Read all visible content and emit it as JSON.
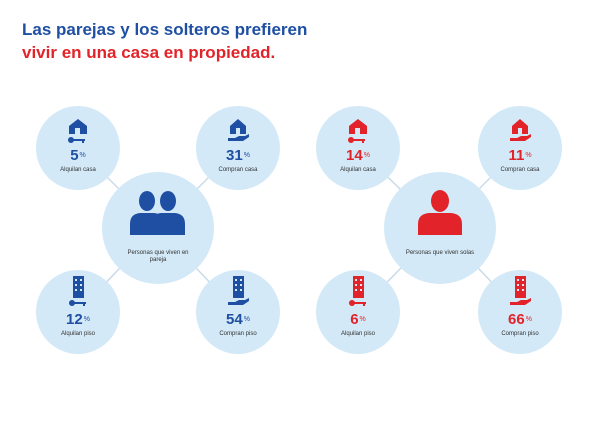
{
  "title": {
    "line1": "Las parejas y los solteros prefieren",
    "line2": "vivir en una casa en propiedad."
  },
  "colors": {
    "blue": "#1f4fa3",
    "red": "#e2232a",
    "circle": "#d3e9f7"
  },
  "couples": {
    "center_label": "Personas que viven en pareja",
    "items": [
      {
        "value": "5",
        "unit": "%",
        "label": "Alquilan casa",
        "icon": "house-key-icon"
      },
      {
        "value": "31",
        "unit": "%",
        "label": "Compran casa",
        "icon": "house-hand-icon"
      },
      {
        "value": "12",
        "unit": "%",
        "label": "Alquilan piso",
        "icon": "building-key-icon"
      },
      {
        "value": "54",
        "unit": "%",
        "label": "Compran piso",
        "icon": "building-hand-icon"
      }
    ]
  },
  "singles": {
    "center_label": "Personas que viven solas",
    "items": [
      {
        "value": "14",
        "unit": "%",
        "label": "Alquilan casa",
        "icon": "house-key-icon"
      },
      {
        "value": "11",
        "unit": "%",
        "label": "Compran casa",
        "icon": "house-hand-icon"
      },
      {
        "value": "6",
        "unit": "%",
        "label": "Alquilan piso",
        "icon": "building-key-icon"
      },
      {
        "value": "66",
        "unit": "%",
        "label": "Compran piso",
        "icon": "building-hand-icon"
      }
    ]
  }
}
